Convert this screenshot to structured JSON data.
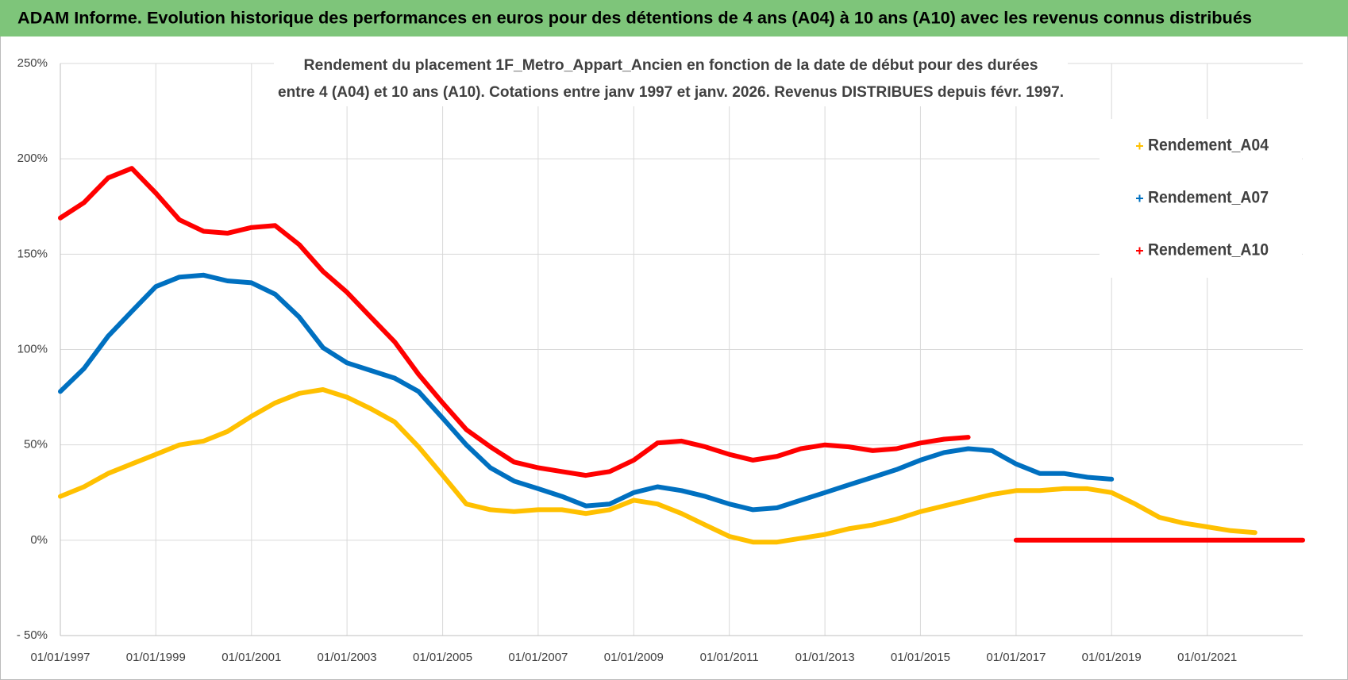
{
  "chart_data": {
    "type": "line",
    "title": "ADAM Informe. Evolution historique des performances en euros pour des détentions de 4 ans (A04) à 10 ans (A10) avec les revenus connus distribués",
    "subtitle": [
      "Rendement du placement 1F_Metro_Appart_Ancien en fonction de la date de début pour des durées",
      "entre 4 (A04) et 10 ans (A10).  Cotations entre janv 1997 et janv. 2026. Revenus DISTRIBUES depuis févr. 1997."
    ],
    "x": [
      "01/01/1997",
      "01/07/1997",
      "01/01/1998",
      "01/07/1998",
      "01/01/1999",
      "01/07/1999",
      "01/01/2000",
      "01/07/2000",
      "01/01/2001",
      "01/07/2001",
      "01/01/2002",
      "01/07/2002",
      "01/01/2003",
      "01/07/2003",
      "01/01/2004",
      "01/07/2004",
      "01/01/2005",
      "01/07/2005",
      "01/01/2006",
      "01/07/2006",
      "01/01/2007",
      "01/07/2007",
      "01/01/2008",
      "01/07/2008",
      "01/01/2009",
      "01/07/2009",
      "01/01/2010",
      "01/07/2010",
      "01/01/2011",
      "01/07/2011",
      "01/01/2012",
      "01/07/2012",
      "01/01/2013",
      "01/07/2013",
      "01/01/2014",
      "01/07/2014",
      "01/01/2015",
      "01/07/2015",
      "01/01/2016",
      "01/07/2016",
      "01/01/2017",
      "01/07/2017",
      "01/01/2018",
      "01/07/2018",
      "01/01/2019",
      "01/07/2019",
      "01/01/2020",
      "01/07/2020",
      "01/01/2021",
      "01/07/2021",
      "01/01/2022",
      "01/07/2022",
      "01/01/2023"
    ],
    "series": [
      {
        "name": "Rendement_A04",
        "color": "#ffc000",
        "values": [
          23,
          28,
          35,
          40,
          45,
          50,
          52,
          57,
          65,
          72,
          77,
          79,
          75,
          69,
          62,
          49,
          34,
          19,
          16,
          15,
          16,
          16,
          14,
          16,
          21,
          19,
          14,
          8,
          2,
          -1,
          -1,
          1,
          3,
          6,
          8,
          11,
          15,
          18,
          21,
          24,
          26,
          26,
          27,
          27,
          25,
          19,
          12,
          9,
          7,
          5,
          4,
          null,
          null
        ]
      },
      {
        "name": "Rendement_A07",
        "color": "#0070c0",
        "values": [
          78,
          90,
          107,
          120,
          133,
          138,
          139,
          136,
          135,
          129,
          117,
          101,
          93,
          89,
          85,
          78,
          64,
          50,
          38,
          31,
          27,
          23,
          18,
          19,
          25,
          28,
          26,
          23,
          19,
          16,
          17,
          21,
          25,
          29,
          33,
          37,
          42,
          46,
          48,
          47,
          40,
          35,
          35,
          33,
          32,
          null,
          null,
          null,
          null,
          null,
          null,
          null,
          null
        ]
      },
      {
        "name": "Rendement_A10",
        "color": "#ff0000",
        "values": [
          169,
          177,
          190,
          195,
          182,
          168,
          162,
          161,
          164,
          165,
          155,
          141,
          130,
          117,
          104,
          87,
          72,
          58,
          49,
          41,
          38,
          36,
          34,
          36,
          42,
          51,
          52,
          49,
          45,
          42,
          44,
          48,
          50,
          49,
          47,
          48,
          51,
          53,
          54,
          null,
          0,
          0,
          0,
          0,
          0,
          0,
          0,
          0,
          0,
          0,
          0,
          0,
          0
        ]
      }
    ],
    "xlim": [
      "01/01/1997",
      "01/01/2023"
    ],
    "xticks": [
      "01/01/1997",
      "01/01/1999",
      "01/01/2001",
      "01/01/2003",
      "01/01/2005",
      "01/01/2007",
      "01/01/2009",
      "01/01/2011",
      "01/01/2013",
      "01/01/2015",
      "01/01/2017",
      "01/01/2019",
      "01/01/2021"
    ],
    "ylim": [
      -50,
      250
    ],
    "yticks": [
      {
        "value": -50,
        "label": "- 50%"
      },
      {
        "value": 0,
        "label": "0%"
      },
      {
        "value": 50,
        "label": "50%"
      },
      {
        "value": 100,
        "label": "100%"
      },
      {
        "value": 150,
        "label": "150%"
      },
      {
        "value": 200,
        "label": "200%"
      },
      {
        "value": 250,
        "label": "250%"
      }
    ],
    "grid": true,
    "legend": "right"
  }
}
